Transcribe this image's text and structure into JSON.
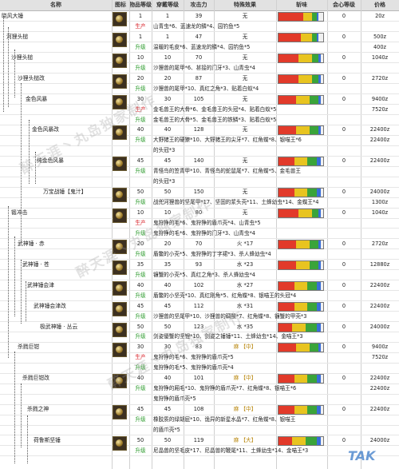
{
  "headers": [
    "名称",
    "图标",
    "物品等级",
    "穿戴等级",
    "攻击力",
    "特殊效果",
    "斩味",
    "会心等级",
    "价格"
  ],
  "rows": [
    {
      "name": "晓风大锤",
      "ilvl": "1",
      "wear": "1",
      "atk": "39",
      "effect": "无",
      "mats": "",
      "crit": "0",
      "price": "20z",
      "tag": "",
      "bar": [
        0.55,
        0.2,
        0.1,
        0.05
      ]
    },
    {
      "name": "",
      "ilvl": "",
      "wear": "",
      "atk": "",
      "effect": "",
      "mats": "山青虫*6、蓝速龙的鳞*4、园钓鱼*5",
      "crit": "",
      "price": "",
      "tag": "生产",
      "bar": null
    },
    {
      "name": "河狸头槌",
      "ilvl": "1",
      "wear": "1",
      "atk": "47",
      "effect": "无",
      "mats": "",
      "crit": "0",
      "price": "500z",
      "tag": "",
      "bar": [
        0.5,
        0.25,
        0.1,
        0.05
      ]
    },
    {
      "name": "",
      "ilvl": "",
      "wear": "",
      "atk": "",
      "effect": "",
      "mats": "温暖的毛皮*6、蓝速龙的鳞*4、园钓鱼*5",
      "crit": "",
      "price": "400z",
      "tag": "升级",
      "bar": null
    },
    {
      "name": "沙狸头槌",
      "ilvl": "10",
      "wear": "10",
      "atk": "70",
      "effect": "无",
      "mats": "",
      "crit": "0",
      "price": "1040z",
      "tag": "",
      "bar": [
        0.45,
        0.3,
        0.15,
        0.05
      ]
    },
    {
      "name": "",
      "ilvl": "",
      "wear": "",
      "atk": "",
      "effect": "",
      "mats": "沙狸兽的尾甲*6、甚接的门牙*3、山青虫*4",
      "crit": "",
      "price": "",
      "tag": "升级",
      "bar": null
    },
    {
      "name": "沙狸头槌改",
      "ilvl": "20",
      "wear": "20",
      "atk": "87",
      "effect": "无",
      "mats": "",
      "crit": "0",
      "price": "2720z",
      "tag": "",
      "bar": [
        0.45,
        0.3,
        0.15,
        0.05
      ]
    },
    {
      "name": "",
      "ilvl": "",
      "wear": "",
      "atk": "",
      "effect": "",
      "mats": "沙狸兽的尾甲*10、真红之角*3、贴着白蚁*4",
      "crit": "",
      "price": "",
      "tag": "升级",
      "bar": null
    },
    {
      "name": "金色风暴",
      "ilvl": "30",
      "wear": "30",
      "atk": "105",
      "effect": "无",
      "mats": "",
      "crit": "0",
      "price": "9400z",
      "tag": "",
      "bar": [
        0.4,
        0.3,
        0.2,
        0.05
      ]
    },
    {
      "name": "",
      "ilvl": "",
      "wear": "",
      "atk": "",
      "effect": "",
      "mats": "金毛兽王的大骨*6、金毛兽王的头冠*4、贴着白蚁*5",
      "crit": "",
      "price": "7520z",
      "tag": "生产",
      "bar": null
    },
    {
      "name": "",
      "ilvl": "",
      "wear": "",
      "atk": "",
      "effect": "",
      "mats": "金毛兽王的大骨*5、金毛兽王的铁鳞*3、贴着白蚁*5",
      "crit": "",
      "price": "",
      "tag": "升级",
      "bar": null
    },
    {
      "name": "金色风暴改",
      "ilvl": "40",
      "wear": "40",
      "atk": "128",
      "effect": "无",
      "mats": "",
      "crit": "0",
      "price": "22400z",
      "tag": "",
      "bar": [
        0.4,
        0.3,
        0.2,
        0.05
      ]
    },
    {
      "name": "",
      "ilvl": "",
      "wear": "",
      "atk": "",
      "effect": "",
      "mats": "大野猪王的硬獠*10、大野猪王的尖牙*7、红角蝶*8、银喵王*6",
      "crit": "",
      "price": "22400z",
      "tag": "升级",
      "bar": null
    },
    {
      "name": "",
      "ilvl": "",
      "wear": "",
      "atk": "",
      "effect": "",
      "mats": "的头冠*3",
      "crit": "",
      "price": "",
      "tag": "",
      "bar": null
    },
    {
      "name": "纯金色风暴",
      "ilvl": "45",
      "wear": "45",
      "atk": "140",
      "effect": "无",
      "mats": "",
      "crit": "0",
      "price": "22400z",
      "tag": "",
      "bar": [
        0.35,
        0.3,
        0.2,
        0.1
      ]
    },
    {
      "name": "",
      "ilvl": "",
      "wear": "",
      "atk": "",
      "effect": "",
      "mats": "青怪鸟的笠青甲*10、青怪鸟的蛇鼠尾*7、红角蝶*5、金毛兽王",
      "crit": "",
      "price": "",
      "tag": "升级",
      "bar": null
    },
    {
      "name": "",
      "ilvl": "",
      "wear": "",
      "atk": "",
      "effect": "",
      "mats": "的头冠*3",
      "crit": "",
      "price": "",
      "tag": "",
      "bar": null
    },
    {
      "name": "万宝战锤【鬼汁】",
      "ilvl": "50",
      "wear": "50",
      "atk": "150",
      "effect": "无",
      "mats": "",
      "crit": "0",
      "price": "24000z",
      "tag": "",
      "bar": [
        0.35,
        0.3,
        0.2,
        0.1
      ]
    },
    {
      "name": "",
      "ilvl": "",
      "wear": "",
      "atk": "",
      "effect": "",
      "mats": "战兜河狸兽的坚尾甲*17、坚固的浆头壳*11、土蜂幼虫*14、金蝶王*4",
      "crit": "",
      "price": "1300z",
      "tag": "升级",
      "bar": null
    },
    {
      "name": "锻冲击",
      "ilvl": "10",
      "wear": "10",
      "atk": "80",
      "effect": "无",
      "mats": "",
      "crit": "0",
      "price": "1040z",
      "tag": "",
      "bar": [
        0.45,
        0.3,
        0.15,
        0.05
      ]
    },
    {
      "name": "",
      "ilvl": "",
      "wear": "",
      "atk": "",
      "effect": "",
      "mats": "鬼狩狰的毛*6、鬼狩狰的盾爪壳*4、山青虫*5",
      "crit": "",
      "price": "",
      "tag": "生产",
      "bar": null
    },
    {
      "name": "",
      "ilvl": "",
      "wear": "",
      "atk": "",
      "effect": "",
      "mats": "鬼狩狰的毛*6、鬼狩狰的门牙*3、山青虫*4",
      "crit": "",
      "price": "",
      "tag": "升级",
      "bar": null
    },
    {
      "name": "武神锤 · 赤",
      "ilvl": "20",
      "wear": "20",
      "atk": "70",
      "effect": "火 *17",
      "mats": "",
      "crit": "0",
      "price": "2720z",
      "tag": "",
      "bar": [
        0.4,
        0.3,
        0.2,
        0.05
      ]
    },
    {
      "name": "",
      "ilvl": "",
      "wear": "",
      "atk": "",
      "effect": "",
      "mats": "盾鳖的小壳*5、鬼狩狰的丁字裙*3、杀人蜂幼虫*4",
      "crit": "",
      "price": "",
      "tag": "升级",
      "bar": null
    },
    {
      "name": "武神锤 · 苍",
      "ilvl": "35",
      "wear": "35",
      "atk": "93",
      "effect": "水 *23",
      "mats": "",
      "crit": "0",
      "price": "12880z",
      "tag": "",
      "bar": [
        0.4,
        0.3,
        0.2,
        0.05
      ]
    },
    {
      "name": "",
      "ilvl": "",
      "wear": "",
      "atk": "",
      "effect": "",
      "mats": "镰蟹的小壳*5、真红之角*3、杀人蜂幼虫*4",
      "crit": "",
      "price": "",
      "tag": "升级",
      "bar": null
    },
    {
      "name": "武神锤会津",
      "ilvl": "40",
      "wear": "40",
      "atk": "102",
      "effect": "水 *27",
      "mats": "",
      "crit": "0",
      "price": "22400z",
      "tag": "",
      "bar": [
        0.35,
        0.3,
        0.2,
        0.1
      ]
    },
    {
      "name": "",
      "ilvl": "",
      "wear": "",
      "atk": "",
      "effect": "",
      "mats": "盾鳖的小坚壳*10、真红刚角*5、红角蝶*8、银喵王的头冠*4",
      "crit": "",
      "price": "",
      "tag": "升级",
      "bar": null
    },
    {
      "name": "武神锤会津改",
      "ilvl": "45",
      "wear": "45",
      "atk": "112",
      "effect": "水 *31",
      "mats": "",
      "crit": "0",
      "price": "22400z",
      "tag": "",
      "bar": [
        0.35,
        0.3,
        0.2,
        0.1
      ]
    },
    {
      "name": "",
      "ilvl": "",
      "wear": "",
      "atk": "",
      "effect": "",
      "mats": "沙狸兽的坚尾甲*10、沙狸兽的碉酸*7、红角蝶*8、镰蟹的甲壳*3",
      "crit": "",
      "price": "",
      "tag": "升级",
      "bar": null
    },
    {
      "name": "极武神锤 · 丛云",
      "ilvl": "50",
      "wear": "50",
      "atk": "123",
      "effect": "水 *35",
      "mats": "",
      "crit": "0",
      "price": "24000z",
      "tag": "",
      "bar": [
        0.3,
        0.3,
        0.25,
        0.1
      ]
    },
    {
      "name": "",
      "ilvl": "",
      "wear": "",
      "atk": "",
      "effect": "",
      "mats": "剑姿優蟹的坚锂*10、剑姿之锤锤*11、土蜂幼虫*14、金喵王*3",
      "crit": "",
      "price": "",
      "tag": "升级",
      "bar": null
    },
    {
      "name": "杀戮巨钳",
      "ilvl": "30",
      "wear": "30",
      "atk": "83",
      "effect": "麻 【中】",
      "mats": "",
      "crit": "0",
      "price": "9400z",
      "tag": "",
      "bar": [
        0.4,
        0.3,
        0.2,
        0.05
      ]
    },
    {
      "name": "",
      "ilvl": "",
      "wear": "",
      "atk": "",
      "effect": "",
      "mats": "鬼狩狰的毛*6、鬼狩狰的盾爪壳*5",
      "crit": "",
      "price": "7520z",
      "tag": "生产",
      "bar": null
    },
    {
      "name": "",
      "ilvl": "",
      "wear": "",
      "atk": "",
      "effect": "",
      "mats": "鬼狩狰的毛*5、鬼狩狰的盾爪壳*4",
      "crit": "",
      "price": "",
      "tag": "升级",
      "bar": null
    },
    {
      "name": "杀戮巨钳改",
      "ilvl": "40",
      "wear": "40",
      "atk": "101",
      "effect": "麻 【中】",
      "mats": "",
      "crit": "0",
      "price": "22400z",
      "tag": "",
      "bar": [
        0.35,
        0.3,
        0.2,
        0.1
      ]
    },
    {
      "name": "",
      "ilvl": "",
      "wear": "",
      "atk": "",
      "effect": "",
      "mats": "鬼狩狰的厢毛*10、鬼狩狰的盾爪壳*7、红角蝶*8、银喵王*6",
      "crit": "",
      "price": "22400z",
      "tag": "升级",
      "bar": null
    },
    {
      "name": "",
      "ilvl": "",
      "wear": "",
      "atk": "",
      "effect": "",
      "mats": "鬼狩狰的盾爪壳*5",
      "crit": "",
      "price": "",
      "tag": "",
      "bar": null
    },
    {
      "name": "杀戮之神",
      "ilvl": "45",
      "wear": "45",
      "atk": "108",
      "effect": "麻 【中】",
      "mats": "",
      "crit": "0",
      "price": "22400z",
      "tag": "",
      "bar": [
        0.35,
        0.3,
        0.2,
        0.1
      ]
    },
    {
      "name": "",
      "ilvl": "",
      "wear": "",
      "atk": "",
      "effect": "",
      "mats": "橡胶质的绿胡屁*10、诡异的新星水晶*7、红角蝶*8、银喵王",
      "crit": "",
      "price": "",
      "tag": "升级",
      "bar": null
    },
    {
      "name": "",
      "ilvl": "",
      "wear": "",
      "atk": "",
      "effect": "",
      "mats": "的盾爪壳*5",
      "crit": "",
      "price": "",
      "tag": "",
      "bar": null
    },
    {
      "name": "荷鲁斯坚锤",
      "ilvl": "50",
      "wear": "50",
      "atk": "119",
      "effect": "麻 【大】",
      "mats": "",
      "crit": "0",
      "price": "24000z",
      "tag": "",
      "bar": [
        0.3,
        0.3,
        0.25,
        0.1
      ]
    },
    {
      "name": "",
      "ilvl": "",
      "wear": "",
      "atk": "",
      "effect": "",
      "mats": "尼晶兽的坚毛皮*17、尼晶兽的鞭尾*11、土蜂幼虫*14、金喵王*3",
      "crit": "",
      "price": "",
      "tag": "升级",
      "bar": null
    }
  ],
  "watermarks": [
    "醉天涯丶丸岛独家制作",
    "醉天涯丶丸岛独家制作",
    "醉天涯丶丸岛独家制作"
  ],
  "logo_text": "TAK",
  "colors": {
    "bar_red": "#e23a2a",
    "bar_yellow": "#e8c420",
    "bar_green": "#3aa43a",
    "bar_blue": "#3a6ed8",
    "sheng": "#d9262c",
    "up": "#2a9a2a"
  }
}
